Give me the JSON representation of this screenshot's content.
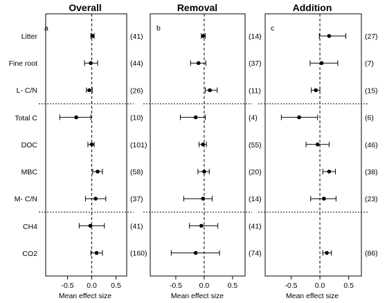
{
  "chart_data": [
    {
      "type": "forest",
      "title": "Overall",
      "panel_letter": "a",
      "xlabel": "Mean effect size",
      "xlim": [
        -0.95,
        0.72
      ],
      "xticks": [
        -0.5,
        0.0,
        0.5
      ],
      "xtick_labels": [
        "-0.5",
        "0.0",
        "0.5"
      ],
      "categories": [
        "Litter",
        "Fine root",
        "L- C/N",
        "Total C",
        "DOC",
        "MBC",
        "M- C/N",
        "CH4",
        "CO2"
      ],
      "points": [
        {
          "category": "Litter",
          "mean": 0.02,
          "lower": -0.02,
          "upper": 0.05,
          "n": "(41)"
        },
        {
          "category": "Fine root",
          "mean": -0.02,
          "lower": -0.15,
          "upper": 0.12,
          "n": "(44)"
        },
        {
          "category": "L- C/N",
          "mean": -0.05,
          "lower": -0.11,
          "upper": 0.01,
          "n": "(26)"
        },
        {
          "category": "Total C",
          "mean": -0.32,
          "lower": -0.66,
          "upper": -0.02,
          "n": "(10)"
        },
        {
          "category": "DOC",
          "mean": 0.0,
          "lower": -0.08,
          "upper": 0.05,
          "n": "(101)"
        },
        {
          "category": "MBC",
          "mean": 0.12,
          "lower": 0.02,
          "upper": 0.22,
          "n": "(58)"
        },
        {
          "category": "M- C/N",
          "mean": 0.08,
          "lower": -0.13,
          "upper": 0.29,
          "n": "(37)"
        },
        {
          "category": "CH4",
          "mean": -0.03,
          "lower": -0.26,
          "upper": 0.26,
          "n": "(41)"
        },
        {
          "category": "CO2",
          "mean": 0.1,
          "lower": -0.02,
          "upper": 0.22,
          "n": "(160)"
        }
      ]
    },
    {
      "type": "forest",
      "title": "Removal",
      "panel_letter": "b",
      "xlabel": "Mean effect size",
      "xlim": [
        -0.95,
        0.72
      ],
      "xticks": [
        -0.5,
        0.0,
        0.5
      ],
      "xtick_labels": [
        "-0.5",
        "0.0",
        "0.5"
      ],
      "categories": [
        "Litter",
        "Fine root",
        "L- C/N",
        "Total C",
        "DOC",
        "MBC",
        "M- C/N",
        "CH4",
        "CO2"
      ],
      "points": [
        {
          "category": "Litter",
          "mean": -0.02,
          "lower": -0.05,
          "upper": 0.02,
          "n": "(14)"
        },
        {
          "category": "Fine root",
          "mean": -0.1,
          "lower": -0.24,
          "upper": 0.03,
          "n": "(37)"
        },
        {
          "category": "L- C/N",
          "mean": 0.1,
          "lower": 0.02,
          "upper": 0.23,
          "n": "(11)"
        },
        {
          "category": "Total C",
          "mean": -0.15,
          "lower": -0.42,
          "upper": 0.02,
          "n": "(4)"
        },
        {
          "category": "DOC",
          "mean": -0.02,
          "lower": -0.09,
          "upper": 0.04,
          "n": "(55)"
        },
        {
          "category": "MBC",
          "mean": 0.0,
          "lower": -0.11,
          "upper": 0.09,
          "n": "(20)"
        },
        {
          "category": "M- C/N",
          "mean": -0.02,
          "lower": -0.36,
          "upper": 0.14,
          "n": "(14)"
        },
        {
          "category": "CH4",
          "mean": -0.05,
          "lower": -0.26,
          "upper": 0.24,
          "n": "(41)"
        },
        {
          "category": "CO2",
          "mean": -0.15,
          "lower": -0.58,
          "upper": 0.27,
          "n": "(74)"
        }
      ]
    },
    {
      "type": "forest",
      "title": "Addition",
      "panel_letter": "c",
      "xlabel": "Mean effect size",
      "xlim": [
        -0.95,
        0.72
      ],
      "xticks": [
        -0.5,
        0.0,
        0.5
      ],
      "xtick_labels": [
        "-0.5",
        "0.0",
        "0.5"
      ],
      "categories": [
        "Litter",
        "Fine root",
        "L- C/N",
        "Total C",
        "DOC",
        "MBC",
        "M- C/N",
        "CH4",
        "CO2"
      ],
      "points": [
        {
          "category": "Litter",
          "mean": 0.16,
          "lower": -0.01,
          "upper": 0.45,
          "n": "(27)"
        },
        {
          "category": "Fine root",
          "mean": 0.03,
          "lower": -0.17,
          "upper": 0.31,
          "n": "(7)"
        },
        {
          "category": "L- C/N",
          "mean": -0.07,
          "lower": -0.15,
          "upper": 0.0,
          "n": "(15)"
        },
        {
          "category": "Total C",
          "mean": -0.36,
          "lower": -0.67,
          "upper": -0.04,
          "n": "(6)"
        },
        {
          "category": "DOC",
          "mean": -0.04,
          "lower": -0.24,
          "upper": 0.16,
          "n": "(46)"
        },
        {
          "category": "MBC",
          "mean": 0.16,
          "lower": 0.05,
          "upper": 0.27,
          "n": "(38)"
        },
        {
          "category": "M- C/N",
          "mean": 0.07,
          "lower": -0.16,
          "upper": 0.28,
          "n": "(23)"
        },
        {
          "category": "CH4",
          "mean": null,
          "lower": null,
          "upper": null,
          "n": ""
        },
        {
          "category": "CO2",
          "mean": 0.12,
          "lower": 0.05,
          "upper": 0.2,
          "n": "(86)"
        }
      ]
    }
  ],
  "group_separators_after": [
    "L- C/N",
    "M- C/N"
  ]
}
